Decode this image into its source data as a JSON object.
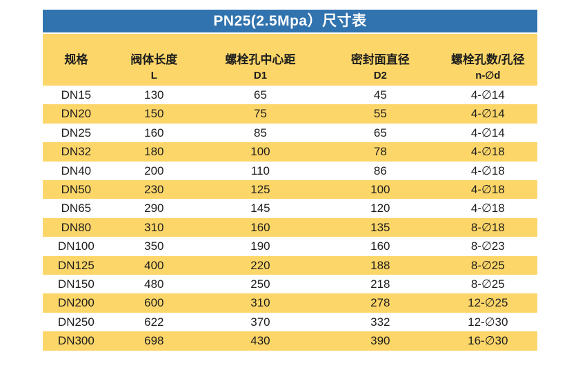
{
  "title": "PN25(2.5Mpa）尺寸表",
  "colors": {
    "title_bar_bg": "#3173ae",
    "title_text": "#ffffff",
    "stripe_yellow": "#fcd669",
    "row_white": "#ffffff",
    "body_text": "#1d1d1d"
  },
  "table": {
    "columns": [
      {
        "label": "规格",
        "sub": ""
      },
      {
        "label": "阀体长度",
        "sub": "L"
      },
      {
        "label": "螺栓孔中心距",
        "sub": "D1"
      },
      {
        "label": "密封面直径",
        "sub": "D2"
      },
      {
        "label": "螺栓孔数/孔径",
        "sub": "n-∅d"
      }
    ],
    "rows": [
      [
        "DN15",
        "130",
        "65",
        "45",
        "4-∅14"
      ],
      [
        "DN20",
        "150",
        "75",
        "55",
        "4-∅14"
      ],
      [
        "DN25",
        "160",
        "85",
        "65",
        "4-∅14"
      ],
      [
        "DN32",
        "180",
        "100",
        "78",
        "4-∅18"
      ],
      [
        "DN40",
        "200",
        "110",
        "86",
        "4-∅18"
      ],
      [
        "DN50",
        "230",
        "125",
        "100",
        "4-∅18"
      ],
      [
        "DN65",
        "290",
        "145",
        "120",
        "4-∅18"
      ],
      [
        "DN80",
        "310",
        "160",
        "135",
        "8-∅18"
      ],
      [
        "DN100",
        "350",
        "190",
        "160",
        "8-∅23"
      ],
      [
        "DN125",
        "400",
        "220",
        "188",
        "8-∅25"
      ],
      [
        "DN150",
        "480",
        "250",
        "218",
        "8-∅25"
      ],
      [
        "DN200",
        "600",
        "310",
        "278",
        "12-∅25"
      ],
      [
        "DN250",
        "622",
        "370",
        "332",
        "12-∅30"
      ],
      [
        "DN300",
        "698",
        "430",
        "390",
        "16-∅30"
      ]
    ]
  }
}
